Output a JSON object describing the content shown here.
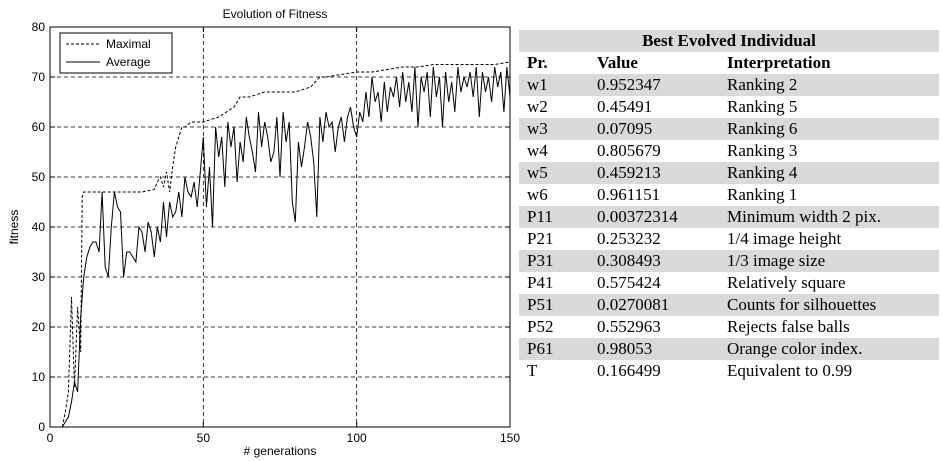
{
  "chart_data": {
    "type": "line",
    "title": "Evolution of Fitness",
    "xlabel": "# generations",
    "ylabel": "fitness",
    "xlim": [
      0,
      150
    ],
    "ylim": [
      0,
      80
    ],
    "xticks": [
      0,
      50,
      100,
      150
    ],
    "yticks": [
      0,
      10,
      20,
      30,
      40,
      50,
      60,
      70,
      80
    ],
    "grid": true,
    "legend_position": "top-left",
    "series": [
      {
        "name": "Maximal",
        "style": "dashed",
        "x": [
          4,
          5,
          6,
          7,
          8,
          9,
          10,
          10.5,
          11,
          14,
          20,
          25,
          30,
          34,
          35,
          36,
          37,
          38,
          39,
          40,
          41,
          42,
          43,
          44,
          46,
          50,
          55,
          60,
          62,
          65,
          70,
          75,
          80,
          85,
          88,
          90,
          95,
          100,
          105,
          110,
          115,
          120,
          125,
          130,
          135,
          140,
          145,
          150
        ],
        "values": [
          0,
          3,
          7,
          26,
          8,
          24,
          15,
          46,
          47,
          47,
          47,
          47,
          47,
          47.5,
          49,
          50,
          48,
          51,
          47,
          52,
          56,
          58,
          60,
          60,
          61,
          61,
          62,
          64,
          66,
          66,
          67,
          67,
          67,
          68,
          70,
          70,
          70.5,
          71,
          71,
          71.5,
          72,
          72,
          72.5,
          72.5,
          72.5,
          72.5,
          72.5,
          73
        ]
      },
      {
        "name": "Average",
        "style": "solid",
        "x": [
          4,
          5,
          6,
          7,
          8,
          9,
          10,
          11,
          12,
          13,
          14,
          15,
          16,
          17,
          18,
          19,
          20,
          21,
          22,
          23,
          24,
          25,
          26,
          27,
          28,
          29,
          30,
          31,
          32,
          33,
          34,
          35,
          36,
          37,
          38,
          39,
          40,
          41,
          42,
          43,
          44,
          45,
          46,
          47,
          48,
          49,
          50,
          51,
          52,
          53,
          54,
          55,
          56,
          57,
          58,
          59,
          60,
          61,
          62,
          63,
          64,
          65,
          66,
          67,
          68,
          69,
          70,
          71,
          72,
          73,
          74,
          75,
          76,
          77,
          78,
          79,
          80,
          81,
          82,
          83,
          84,
          85,
          86,
          87,
          88,
          89,
          90,
          91,
          92,
          93,
          94,
          95,
          96,
          97,
          98,
          99,
          100,
          101,
          102,
          103,
          104,
          105,
          106,
          107,
          108,
          109,
          110,
          111,
          112,
          113,
          114,
          115,
          116,
          117,
          118,
          119,
          120,
          121,
          122,
          123,
          124,
          125,
          126,
          127,
          128,
          129,
          130,
          131,
          132,
          133,
          134,
          135,
          136,
          137,
          138,
          139,
          140,
          141,
          142,
          143,
          144,
          145,
          146,
          147,
          148,
          149,
          150
        ],
        "values": [
          0,
          1,
          2,
          5,
          9,
          7,
          22,
          30,
          34,
          36,
          37,
          37,
          35,
          47,
          32,
          30,
          40,
          47,
          44,
          43,
          30,
          35,
          35,
          34,
          33,
          40,
          39,
          35,
          41,
          39,
          34,
          40,
          37,
          45,
          38,
          45,
          42,
          43,
          47,
          42,
          50,
          47,
          46,
          49,
          44,
          51,
          58,
          44,
          52,
          40,
          60,
          54,
          58,
          48,
          61,
          56,
          60,
          49,
          57,
          53,
          62,
          58,
          55,
          51,
          63,
          56,
          61,
          58,
          53,
          55,
          62,
          50,
          63,
          57,
          61,
          45,
          41,
          57,
          52,
          56,
          61,
          58,
          53,
          42,
          62,
          57,
          63,
          60,
          61,
          55,
          60,
          62,
          57,
          62,
          64,
          60,
          58,
          63,
          61,
          67,
          62,
          70,
          65,
          67,
          61,
          69,
          63,
          68,
          66,
          70,
          64,
          71,
          65,
          69,
          63,
          72,
          60,
          70,
          67,
          71,
          62,
          72,
          66,
          70,
          60,
          71,
          65,
          69,
          63,
          72,
          67,
          70,
          68,
          71,
          66,
          72,
          62,
          71,
          67,
          70,
          65,
          72,
          68,
          71,
          63,
          72,
          66
        ]
      }
    ]
  },
  "table": {
    "title": "Best  Evolved Individual",
    "headers": [
      "Pr.",
      "Value",
      "Interpretation"
    ],
    "rows": [
      [
        "w1",
        "0.952347",
        "Ranking 2"
      ],
      [
        "w2",
        "0.45491",
        "Ranking 5"
      ],
      [
        "w3",
        "0.07095",
        "Ranking 6"
      ],
      [
        "w4",
        "0.805679",
        "Ranking 3"
      ],
      [
        "w5",
        "0.459213",
        "Ranking 4"
      ],
      [
        "w6",
        "0.961151",
        "Ranking 1"
      ],
      [
        "P11",
        "0.00372314",
        "Minimum width 2 pix."
      ],
      [
        "P21",
        "0.253232",
        "1/4 image height"
      ],
      [
        "P31",
        "0.308493",
        "1/3 image size"
      ],
      [
        "P41",
        "0.575424",
        "Relatively square"
      ],
      [
        "P51",
        "0.0270081",
        "Counts for silhouettes"
      ],
      [
        "P52",
        "0.552963",
        "Rejects false balls"
      ],
      [
        "P61",
        "0.98053",
        "Orange color index."
      ],
      [
        "T",
        "0.166499",
        "Equivalent to  0.99"
      ]
    ]
  }
}
